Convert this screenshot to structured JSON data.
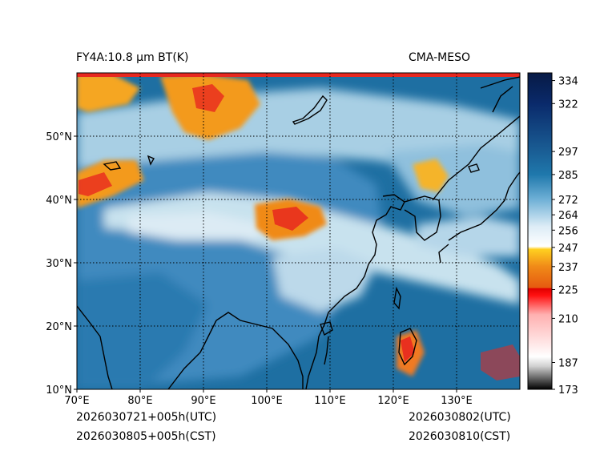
{
  "header": {
    "left_title": "FY4A:10.8 µm BT(K)",
    "right_title": "CMA-MESO"
  },
  "footer": {
    "left_utc": "2026030721+005h(UTC)",
    "left_cst": "2026030805+005h(CST)",
    "right_utc": "2026030802(UTC)",
    "right_cst": "2026030810(CST)"
  },
  "map": {
    "lon_range": [
      70,
      140
    ],
    "lat_range": [
      10,
      60
    ],
    "lon_ticks": [
      70,
      80,
      90,
      100,
      110,
      120,
      130
    ],
    "lon_labels": [
      "70°E",
      "80°E",
      "90°E",
      "100°E",
      "110°E",
      "120°E",
      "130°E"
    ],
    "lat_ticks": [
      10,
      20,
      30,
      40,
      50
    ],
    "lat_labels": [
      "10°N",
      "20°N",
      "30°N",
      "40°N",
      "50°N"
    ],
    "gridlines": "dotted",
    "colors": {
      "ocean": "#1f74a7",
      "land_clear": "#5e9fc9",
      "cloud_mid": "#c3dde9",
      "cloud_cold": "#f5a623",
      "cloud_very_cold": "#e8281f",
      "coastline": "#000000"
    }
  },
  "colorbar": {
    "min": 173,
    "max": 338,
    "tick_values": [
      173,
      187,
      210,
      225,
      237,
      247,
      256,
      264,
      272,
      285,
      297,
      322,
      334
    ],
    "tick_labels": [
      "173",
      "187",
      "210",
      "225",
      "237",
      "247",
      "256",
      "264",
      "272",
      "285",
      "297",
      "322",
      "334"
    ],
    "stops": [
      {
        "value": 173,
        "color": "#000000"
      },
      {
        "value": 185,
        "color": "#d0d0d0"
      },
      {
        "value": 190,
        "color": "#ffffff"
      },
      {
        "value": 212,
        "color": "#ffb0b0"
      },
      {
        "value": 222,
        "color": "#ff1010"
      },
      {
        "value": 225.5,
        "color": "#e00000"
      },
      {
        "value": 226,
        "color": "#e65a10"
      },
      {
        "value": 237,
        "color": "#f08a18"
      },
      {
        "value": 246,
        "color": "#ffd020"
      },
      {
        "value": 247.5,
        "color": "#ffffff"
      },
      {
        "value": 258,
        "color": "#dcecf6"
      },
      {
        "value": 272,
        "color": "#6fb0d6"
      },
      {
        "value": 285,
        "color": "#1f78ac"
      },
      {
        "value": 297,
        "color": "#1a5e95"
      },
      {
        "value": 322,
        "color": "#0a2a6b"
      },
      {
        "value": 338,
        "color": "#071a45"
      }
    ]
  }
}
